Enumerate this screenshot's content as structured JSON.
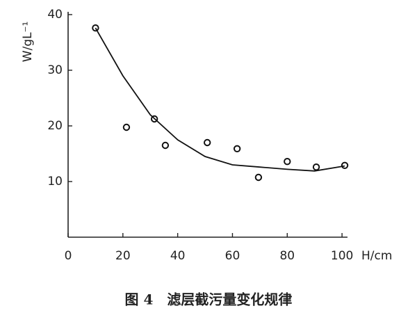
{
  "chart_data": {
    "type": "scatter",
    "caption": "图 4　滤层截污量变化规律",
    "x_label": "H/cm",
    "y_label": "W/gL⁻¹",
    "xlim": [
      0,
      102
    ],
    "ylim": [
      0,
      40
    ],
    "xticks": [
      0,
      20,
      40,
      60,
      80,
      100
    ],
    "yticks": [
      10,
      20,
      30,
      40
    ],
    "series": [
      {
        "style": "markers",
        "color": "#111111",
        "x": [
          10,
          21.3,
          31.5,
          35.5,
          50.8,
          61.7,
          69.5,
          80,
          90.6,
          101
        ],
        "values": [
          37.6,
          19.75,
          21.25,
          16.5,
          17.0,
          15.9,
          10.75,
          13.6,
          12.6,
          12.9
        ]
      },
      {
        "style": "line",
        "color": "#111111",
        "x": [
          10,
          20,
          30,
          40,
          50,
          60,
          70,
          80,
          90,
          101
        ],
        "values": [
          37.6,
          29,
          22,
          17.5,
          14.5,
          13,
          12.6,
          12.2,
          11.9,
          12.8
        ]
      }
    ]
  }
}
